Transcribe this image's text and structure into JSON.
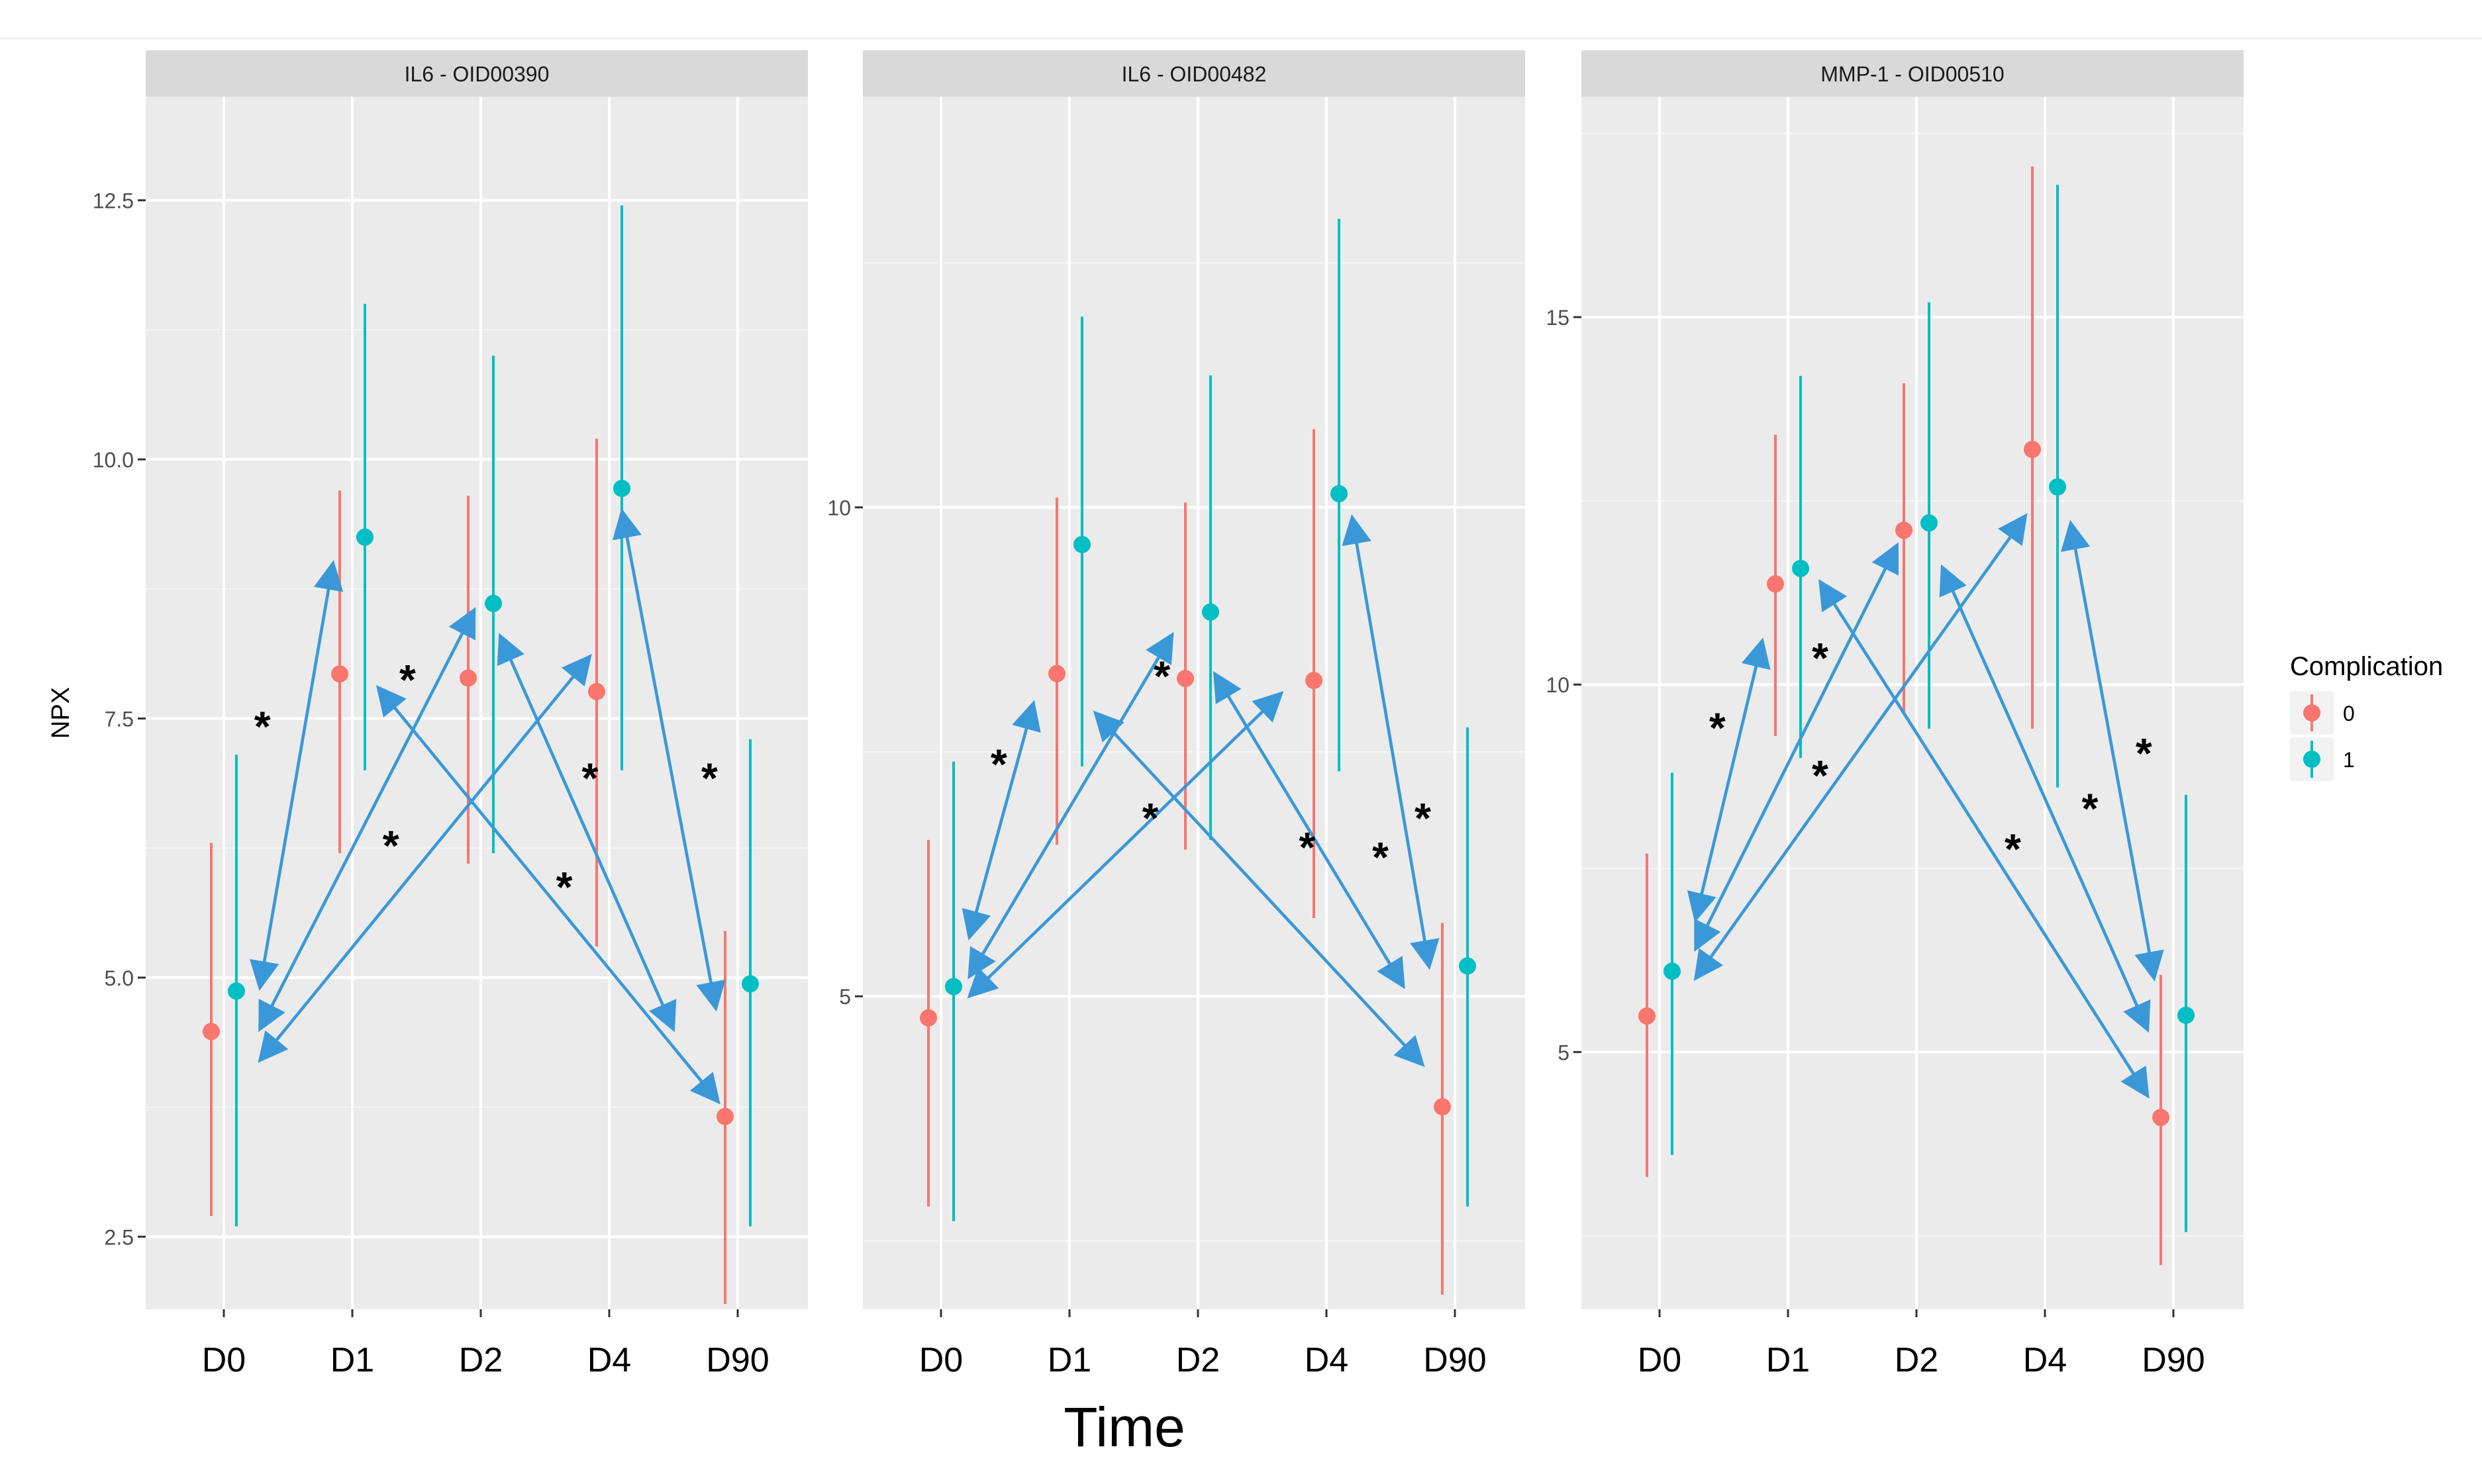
{
  "chart_data": {
    "type": "scatter",
    "subtype": "point-range with annotation arrows",
    "title": "",
    "xlabel": "Time",
    "ylabel": "NPX",
    "grid": true,
    "legend": {
      "title": "Complication",
      "position": "right",
      "entries": [
        {
          "label": "0",
          "color": "#F8766D"
        },
        {
          "label": "1",
          "color": "#00BFC4"
        }
      ]
    },
    "categories": [
      "D0",
      "D1",
      "D2",
      "D4",
      "D90"
    ],
    "arrow_color": "#3A98D8",
    "annotation_symbol": "*",
    "panels": [
      {
        "strip": "IL6 - OID00390",
        "ylim": [
          1.8,
          13.5
        ],
        "yticks": [
          2.5,
          5.0,
          7.5,
          10.0,
          12.5
        ],
        "ytick_labels": [
          "2.5",
          "5.0",
          "7.5",
          "10.0",
          "12.5"
        ],
        "minor_ticks": [
          3.75,
          6.25,
          8.75,
          11.25
        ],
        "series": [
          {
            "name": "0",
            "color": "#F8766D",
            "mean": [
              4.48,
              7.93,
              7.89,
              7.76,
              3.66
            ],
            "low": [
              2.7,
              6.2,
              6.1,
              5.3,
              1.85
            ],
            "high": [
              6.3,
              9.7,
              9.65,
              10.2,
              5.45
            ]
          },
          {
            "name": "1",
            "color": "#00BFC4",
            "mean": [
              4.87,
              9.25,
              8.61,
              9.72,
              4.94
            ],
            "low": [
              2.6,
              7.0,
              6.2,
              7.0,
              2.6
            ],
            "high": [
              7.15,
              11.5,
              11.0,
              12.45,
              7.3
            ]
          }
        ],
        "arrows": [
          {
            "from": [
              0.28,
              4.9
            ],
            "to": [
              0.85,
              9.0
            ]
          },
          {
            "from": [
              0.85,
              9.0
            ],
            "to": [
              0.28,
              4.9
            ]
          },
          {
            "from": [
              0.28,
              4.5
            ],
            "to": [
              1.95,
              8.55
            ]
          },
          {
            "from": [
              1.95,
              8.55
            ],
            "to": [
              0.28,
              4.5
            ]
          },
          {
            "from": [
              0.28,
              4.2
            ],
            "to": [
              2.85,
              8.1
            ]
          },
          {
            "from": [
              2.85,
              8.1
            ],
            "to": [
              0.28,
              4.2
            ]
          },
          {
            "from": [
              1.2,
              7.8
            ],
            "to": [
              3.85,
              3.8
            ]
          },
          {
            "from": [
              3.85,
              3.8
            ],
            "to": [
              1.2,
              7.8
            ]
          },
          {
            "from": [
              2.15,
              8.3
            ],
            "to": [
              3.5,
              4.5
            ]
          },
          {
            "from": [
              3.5,
              4.5
            ],
            "to": [
              2.15,
              8.3
            ]
          },
          {
            "from": [
              3.1,
              9.5
            ],
            "to": [
              3.83,
              4.7
            ]
          },
          {
            "from": [
              3.83,
              4.7
            ],
            "to": [
              3.1,
              9.5
            ]
          }
        ],
        "stars": [
          [
            0.3,
            7.45
          ],
          [
            1.43,
            7.9
          ],
          [
            1.3,
            6.3
          ],
          [
            2.65,
            5.9
          ],
          [
            2.85,
            6.95
          ],
          [
            3.78,
            6.95
          ]
        ]
      },
      {
        "strip": "IL6 - OID00482",
        "ylim": [
          1.8,
          14.2
        ],
        "yticks": [
          5,
          10
        ],
        "ytick_labels": [
          "5",
          "10"
        ],
        "minor_ticks": [
          2.5,
          7.5,
          12.5
        ],
        "series": [
          {
            "name": "0",
            "color": "#F8766D",
            "mean": [
              4.78,
              8.3,
              8.25,
              8.23,
              3.87
            ],
            "low": [
              2.85,
              6.55,
              6.5,
              5.8,
              1.95
            ],
            "high": [
              6.6,
              10.1,
              10.05,
              10.8,
              5.75
            ]
          },
          {
            "name": "1",
            "color": "#00BFC4",
            "mean": [
              5.1,
              9.62,
              8.93,
              10.14,
              5.31
            ],
            "low": [
              2.7,
              7.35,
              6.6,
              7.3,
              2.85
            ],
            "high": [
              7.4,
              11.95,
              11.35,
              12.95,
              7.75
            ]
          }
        ],
        "arrows": [
          {
            "from": [
              0.22,
              5.6
            ],
            "to": [
              0.72,
              8.0
            ]
          },
          {
            "from": [
              0.72,
              8.0
            ],
            "to": [
              0.22,
              5.6
            ]
          },
          {
            "from": [
              0.22,
              5.2
            ],
            "to": [
              1.8,
              8.7
            ]
          },
          {
            "from": [
              1.8,
              8.7
            ],
            "to": [
              0.22,
              5.2
            ]
          },
          {
            "from": [
              0.22,
              5.0
            ],
            "to": [
              2.65,
              8.1
            ]
          },
          {
            "from": [
              2.65,
              8.1
            ],
            "to": [
              0.22,
              5.0
            ]
          },
          {
            "from": [
              1.2,
              7.9
            ],
            "to": [
              3.75,
              4.3
            ]
          },
          {
            "from": [
              3.75,
              4.3
            ],
            "to": [
              1.2,
              7.9
            ]
          },
          {
            "from": [
              2.13,
              8.3
            ],
            "to": [
              3.6,
              5.1
            ]
          },
          {
            "from": [
              3.6,
              5.1
            ],
            "to": [
              2.13,
              8.3
            ]
          },
          {
            "from": [
              3.2,
              9.9
            ],
            "to": [
              3.8,
              5.3
            ]
          },
          {
            "from": [
              3.8,
              5.3
            ],
            "to": [
              3.2,
              9.9
            ]
          }
        ],
        "stars": [
          [
            0.45,
            7.4
          ],
          [
            1.72,
            8.3
          ],
          [
            1.63,
            6.85
          ],
          [
            2.85,
            6.55
          ],
          [
            3.42,
            6.45
          ],
          [
            3.75,
            6.85
          ]
        ]
      },
      {
        "strip": "MMP-1 - OID00510",
        "ylim": [
          1.5,
          18.0
        ],
        "yticks": [
          5,
          10,
          15
        ],
        "ytick_labels": [
          "5",
          "10",
          "15"
        ],
        "minor_ticks": [
          2.5,
          7.5,
          12.5,
          17.5
        ],
        "series": [
          {
            "name": "0",
            "color": "#F8766D",
            "mean": [
              5.49,
              11.37,
              12.1,
              13.2,
              4.11
            ],
            "low": [
              3.3,
              9.3,
              9.6,
              9.4,
              2.1
            ],
            "high": [
              7.7,
              13.4,
              14.1,
              17.05,
              6.05
            ]
          },
          {
            "name": "1",
            "color": "#00BFC4",
            "mean": [
              6.1,
              11.58,
              12.2,
              12.69,
              5.5
            ],
            "low": [
              3.6,
              9.0,
              9.4,
              8.6,
              2.55
            ],
            "high": [
              8.8,
              14.2,
              15.2,
              16.8,
              8.5
            ]
          }
        ],
        "arrows": [
          {
            "from": [
              0.28,
              6.8
            ],
            "to": [
              0.8,
              10.6
            ]
          },
          {
            "from": [
              0.8,
              10.6
            ],
            "to": [
              0.28,
              6.8
            ]
          },
          {
            "from": [
              0.28,
              6.4
            ],
            "to": [
              1.85,
              11.9
            ]
          },
          {
            "from": [
              1.85,
              11.9
            ],
            "to": [
              0.28,
              6.4
            ]
          },
          {
            "from": [
              0.28,
              6.0
            ],
            "to": [
              2.85,
              12.3
            ]
          },
          {
            "from": [
              2.85,
              12.3
            ],
            "to": [
              0.28,
              6.0
            ]
          },
          {
            "from": [
              1.25,
              11.4
            ],
            "to": [
              3.8,
              4.4
            ]
          },
          {
            "from": [
              3.8,
              4.4
            ],
            "to": [
              1.25,
              11.4
            ]
          },
          {
            "from": [
              2.2,
              11.6
            ],
            "to": [
              3.8,
              5.3
            ]
          },
          {
            "from": [
              3.8,
              5.3
            ],
            "to": [
              2.2,
              11.6
            ]
          },
          {
            "from": [
              3.2,
              12.2
            ],
            "to": [
              3.85,
              6.0
            ]
          },
          {
            "from": [
              3.85,
              6.0
            ],
            "to": [
              3.2,
              12.2
            ]
          }
        ],
        "stars": [
          [
            0.45,
            9.45
          ],
          [
            1.25,
            10.4
          ],
          [
            1.25,
            8.8
          ],
          [
            2.75,
            7.8
          ],
          [
            3.35,
            8.35
          ],
          [
            3.77,
            9.1
          ]
        ]
      }
    ]
  }
}
